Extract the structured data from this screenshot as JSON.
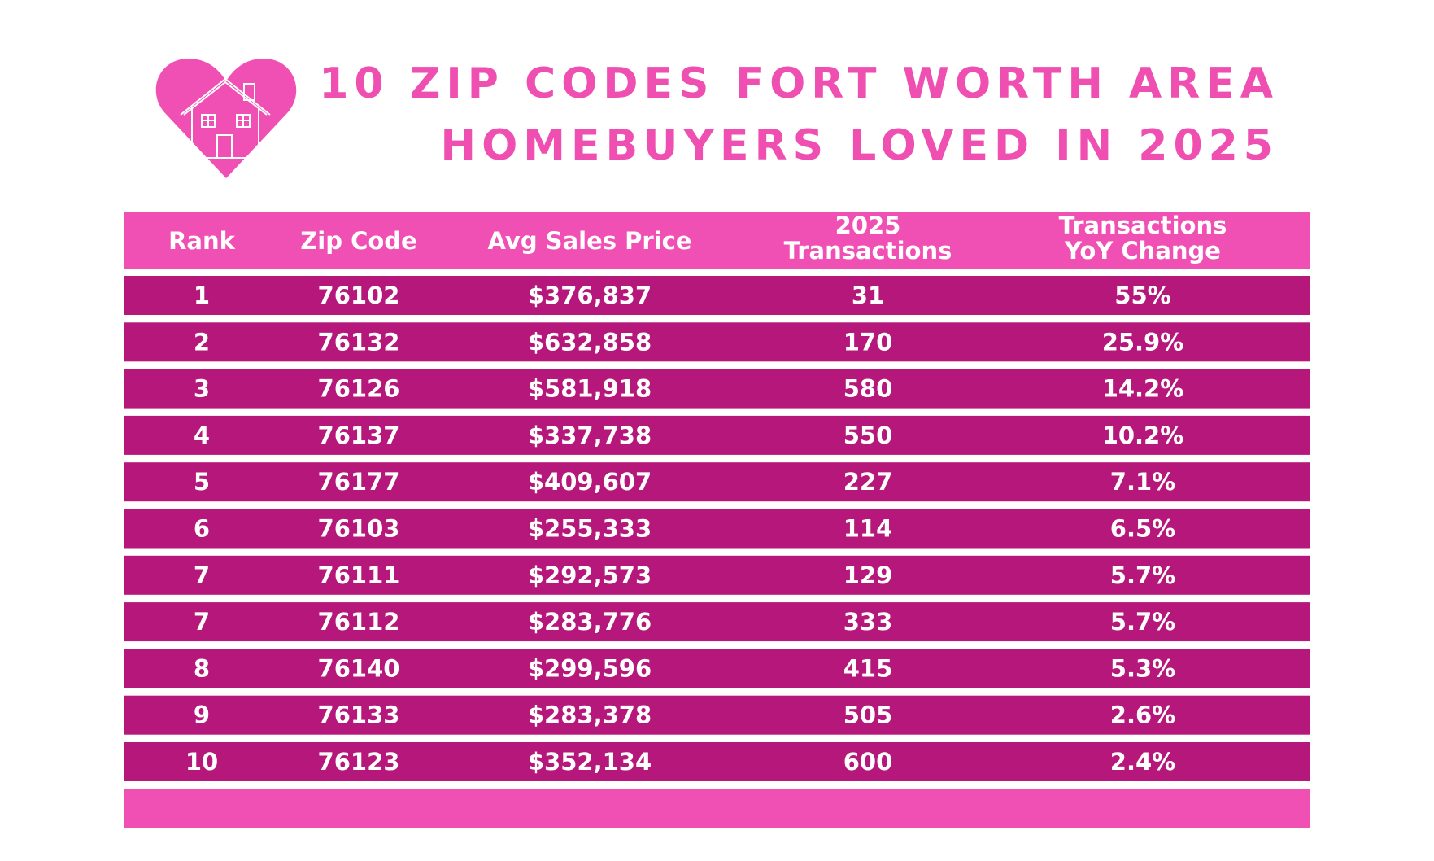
{
  "header": {
    "title": [
      "10 ZIP CODES FORT WORTH AREA",
      "HOMEBUYERS LOVED IN 2025"
    ]
  },
  "table": {
    "columns": [
      [
        "Rank"
      ],
      [
        "Zip Code"
      ],
      [
        "Avg Sales Price"
      ],
      [
        "2025",
        "Transactions"
      ],
      [
        "Transactions",
        "YoY Change"
      ]
    ],
    "rows": [
      [
        "1",
        "76102",
        "$376,837",
        "31",
        "55%"
      ],
      [
        "2",
        "76132",
        "$632,858",
        "170",
        "25.9%"
      ],
      [
        "3",
        "76126",
        "$581,918",
        "580",
        "14.2%"
      ],
      [
        "4",
        "76137",
        "$337,738",
        "550",
        "10.2%"
      ],
      [
        "5",
        "76177",
        "$409,607",
        "227",
        "7.1%"
      ],
      [
        "6",
        "76103",
        "$255,333",
        "114",
        "6.5%"
      ],
      [
        "7",
        "76111",
        "$292,573",
        "129",
        "5.7%"
      ],
      [
        "7",
        "76112",
        "$283,776",
        "333",
        "5.7%"
      ],
      [
        "8",
        "76140",
        "$299,596",
        "415",
        "5.3%"
      ],
      [
        "9",
        "76133",
        "$283,378",
        "505",
        "2.6%"
      ],
      [
        "10",
        "76123",
        "$352,134",
        "600",
        "2.4%"
      ]
    ]
  }
}
